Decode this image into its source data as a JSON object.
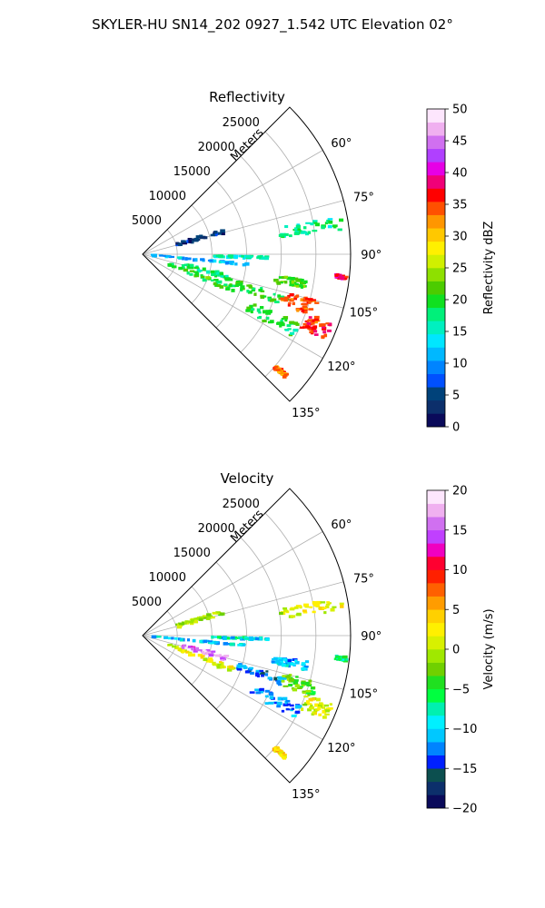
{
  "figure_title": "SKYLER-HU  SN14_202  0927_1.542 UTC Elevation 02°",
  "chart_data": [
    {
      "type": "heatmap",
      "subtype": "polar-sector",
      "title": "Reflectivity",
      "radial_label": "Meters",
      "radial_ticks": [
        5000,
        10000,
        15000,
        20000,
        25000
      ],
      "radial_range": [
        0,
        30000
      ],
      "azimuth_range_deg": [
        45,
        135
      ],
      "azimuth_tick_labels": [
        "60°",
        "75°",
        "90°",
        "105°",
        "120°",
        "135°"
      ],
      "azimuth_tick_values": [
        60,
        75,
        90,
        105,
        120,
        135
      ],
      "grid": true,
      "colorbar": {
        "label": "Reflectivity dBZ",
        "range": [
          0,
          50
        ],
        "ticks": [
          "0",
          "5",
          "10",
          "15",
          "20",
          "25",
          "30",
          "35",
          "40",
          "45",
          "50"
        ],
        "colors": [
          "#0a0a5a",
          "#0c2f6b",
          "#00427a",
          "#0050ff",
          "#0084ff",
          "#00b8ff",
          "#00e6ff",
          "#00f0c0",
          "#00f07a",
          "#10e020",
          "#4ccc00",
          "#8ee000",
          "#d0f000",
          "#fff000",
          "#ffc800",
          "#ff9600",
          "#ff5000",
          "#ff0000",
          "#f00078",
          "#e600e6",
          "#b040ff",
          "#d070f0",
          "#f0b0f0",
          "#fde6fd"
        ]
      },
      "features": [
        {
          "az": [
            95,
            96
          ],
          "r": [
            1000,
            15000
          ],
          "value": 12
        },
        {
          "az": [
            91,
            92
          ],
          "r": [
            10000,
            18000
          ],
          "value": 16
        },
        {
          "az": [
            72,
            76
          ],
          "r": [
            5000,
            12000
          ],
          "value": 4
        },
        {
          "az": [
            103,
            107
          ],
          "r": [
            6000,
            13000
          ],
          "value": 18
        },
        {
          "az": [
            109,
            113
          ],
          "r": [
            4000,
            14000
          ],
          "value": 20
        },
        {
          "az": [
            106,
            110
          ],
          "r": [
            14000,
            22000
          ],
          "value": 20
        },
        {
          "az": [
            114,
            119
          ],
          "r": [
            17000,
            25000
          ],
          "value": 19
        },
        {
          "az": [
            105,
            110
          ],
          "r": [
            21000,
            26000
          ],
          "value": 35
        },
        {
          "az": [
            110,
            115
          ],
          "r": [
            25000,
            29000
          ],
          "value": 36
        },
        {
          "az": [
            79,
            83
          ],
          "r": [
            20000,
            29000
          ],
          "value": 17
        },
        {
          "az": [
            99,
            102
          ],
          "r": [
            19000,
            24000
          ],
          "value": 22
        },
        {
          "az": [
            130,
            131
          ],
          "r": [
            25000,
            27000
          ],
          "value": 33
        },
        {
          "az": [
            96,
            97
          ],
          "r": [
            28000,
            29500
          ],
          "value": 38
        }
      ]
    },
    {
      "type": "heatmap",
      "subtype": "polar-sector",
      "title": "Velocity",
      "radial_label": "Meters",
      "radial_ticks": [
        5000,
        10000,
        15000,
        20000,
        25000
      ],
      "radial_range": [
        0,
        30000
      ],
      "azimuth_range_deg": [
        45,
        135
      ],
      "azimuth_tick_labels": [
        "60°",
        "75°",
        "90°",
        "105°",
        "120°",
        "135°"
      ],
      "azimuth_tick_values": [
        60,
        75,
        90,
        105,
        120,
        135
      ],
      "grid": true,
      "colorbar": {
        "label": "Velocity (m/s)",
        "range": [
          -20,
          20
        ],
        "ticks": [
          "−20",
          "−15",
          "−10",
          "−5",
          "0",
          "5",
          "10",
          "15",
          "20"
        ],
        "colors": [
          "#0a0a5a",
          "#0c2f6b",
          "#0c4f4f",
          "#0020ff",
          "#0084ff",
          "#00c8ff",
          "#00f0ff",
          "#00f0b0",
          "#00ff40",
          "#20e020",
          "#70d000",
          "#a0e800",
          "#d8f000",
          "#fff000",
          "#ffd000",
          "#ff9c00",
          "#ff6000",
          "#ff2000",
          "#ff0030",
          "#f000c0",
          "#c040ff",
          "#d070f0",
          "#f0b0f0",
          "#fde6fd"
        ]
      },
      "features": [
        {
          "az": [
            95,
            96
          ],
          "r": [
            1000,
            15000
          ],
          "value": -10
        },
        {
          "az": [
            91,
            92
          ],
          "r": [
            10000,
            18000
          ],
          "value": -9
        },
        {
          "az": [
            72,
            76
          ],
          "r": [
            5000,
            12000
          ],
          "value": -1
        },
        {
          "az": [
            103,
            107
          ],
          "r": [
            6000,
            13000
          ],
          "value": 16
        },
        {
          "az": [
            109,
            113
          ],
          "r": [
            4000,
            14000
          ],
          "value": 2
        },
        {
          "az": [
            106,
            110
          ],
          "r": [
            14000,
            22000
          ],
          "value": -13
        },
        {
          "az": [
            114,
            119
          ],
          "r": [
            17000,
            25000
          ],
          "value": -12
        },
        {
          "az": [
            105,
            110
          ],
          "r": [
            21000,
            26000
          ],
          "value": -3
        },
        {
          "az": [
            110,
            115
          ],
          "r": [
            25000,
            29000
          ],
          "value": 1
        },
        {
          "az": [
            79,
            83
          ],
          "r": [
            20000,
            29000
          ],
          "value": 1
        },
        {
          "az": [
            99,
            102
          ],
          "r": [
            19000,
            24000
          ],
          "value": -11
        },
        {
          "az": [
            130,
            131
          ],
          "r": [
            25000,
            27000
          ],
          "value": 3
        },
        {
          "az": [
            96,
            97
          ],
          "r": [
            28000,
            29500
          ],
          "value": -6
        }
      ]
    }
  ]
}
